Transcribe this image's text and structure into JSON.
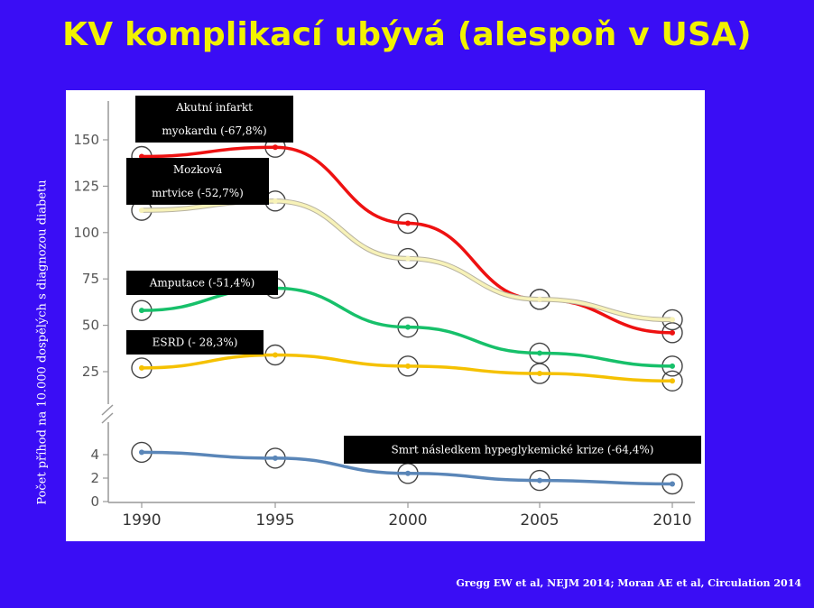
{
  "title": "KV komplikací ubývá (alespoň v USA)",
  "citation": "Gregg EW et al, NEJM 2014; Moran AE et al, Circulation 2014",
  "chart_data": {
    "type": "line",
    "ylabel": "Počet příhod na 10.000 dospělých s diagnozou diabetu",
    "x": [
      1990,
      1995,
      2000,
      2005,
      2010
    ],
    "x_ticks": [
      "1990",
      "1995",
      "2000",
      "2005",
      "2010"
    ],
    "y_ticks_upper": [
      "25",
      "50",
      "75",
      "100",
      "125",
      "150"
    ],
    "y_ticks_lower": [
      "0",
      "2",
      "4"
    ],
    "axis_break": true,
    "ylim_upper": [
      15,
      165
    ],
    "ylim_lower": [
      0,
      6
    ],
    "grid": false,
    "series": [
      {
        "label_lines": [
          "Akutní infarkt",
          "myokardu (-67,8%)"
        ],
        "color": "#ee1111",
        "values": [
          141,
          146,
          105,
          64,
          46
        ]
      },
      {
        "label_lines": [
          "Mozková",
          "mrtvice (-52,7%)"
        ],
        "color": "#f7f2b8",
        "values": [
          112,
          117,
          86,
          64,
          53
        ]
      },
      {
        "label_lines": [
          "Amputace (-51,4%)"
        ],
        "color": "#17c06a",
        "values": [
          58,
          70,
          49,
          35,
          28
        ]
      },
      {
        "label_lines": [
          "ESRD (- 28,3%)"
        ],
        "color": "#f5c100",
        "values": [
          27,
          34,
          28,
          24,
          20
        ]
      },
      {
        "label_lines": [
          "Smrt následkem hypeglykemické krize (-64,4%)"
        ],
        "color": "#5a86b8",
        "values": [
          4.2,
          3.7,
          2.4,
          1.8,
          1.5
        ]
      }
    ]
  }
}
